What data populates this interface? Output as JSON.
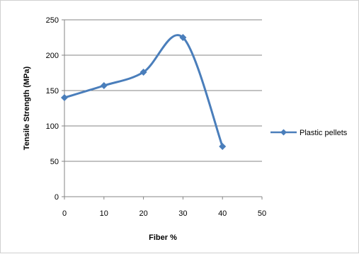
{
  "chart_data": {
    "type": "line",
    "title": "",
    "xlabel": "Fiber %",
    "ylabel": "Tensile Strength (MPa)",
    "xlim": [
      0,
      50
    ],
    "ylim": [
      0,
      250
    ],
    "xticks": [
      0,
      10,
      20,
      30,
      40,
      50
    ],
    "yticks": [
      0,
      50,
      100,
      150,
      200,
      250
    ],
    "grid": "horizontal",
    "legend_position": "right",
    "smooth": true,
    "series": [
      {
        "name": "Plastic pellets",
        "color": "#4a7ebb",
        "marker": "diamond",
        "x": [
          0,
          10,
          20,
          30,
          40
        ],
        "y": [
          140,
          157,
          176,
          225,
          71
        ]
      }
    ]
  }
}
